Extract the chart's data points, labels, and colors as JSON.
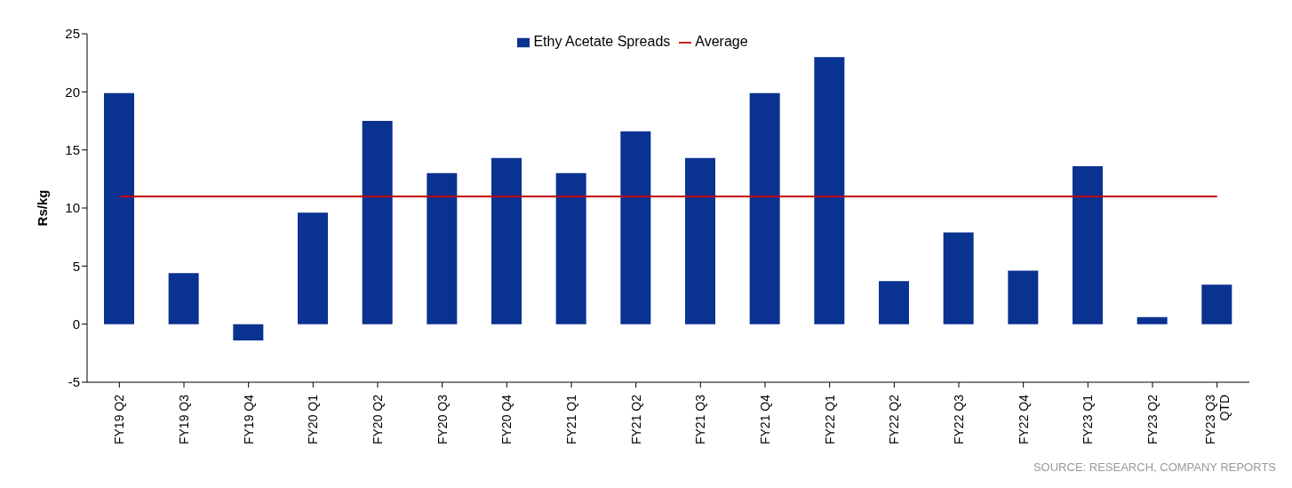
{
  "chart_data": {
    "type": "bar",
    "ylabel": "Rs/kg",
    "categories": [
      "FY19 Q2",
      "FY19 Q3",
      "FY19 Q4",
      "FY20 Q1",
      "FY20 Q2",
      "FY20 Q3",
      "FY20 Q4",
      "FY21 Q1",
      "FY21 Q2",
      "FY21 Q3",
      "FY21 Q4",
      "FY22 Q1",
      "FY22 Q2",
      "FY22 Q3",
      "FY22 Q4",
      "FY23 Q1",
      "FY23 Q2",
      "FY23 Q3 QTD"
    ],
    "series": [
      {
        "name": "Ethy Acetate Spreads",
        "color": "#0a3291",
        "values": [
          19.9,
          4.4,
          -1.4,
          9.6,
          17.5,
          13.0,
          14.3,
          13.0,
          16.6,
          14.3,
          19.9,
          23.0,
          3.7,
          7.9,
          4.6,
          13.6,
          0.6,
          3.4
        ]
      },
      {
        "name": "Average",
        "type": "line",
        "color": "#c00000",
        "values": [
          11,
          11,
          11,
          11,
          11,
          11,
          11,
          11,
          11,
          11,
          11,
          11,
          11,
          11,
          11,
          11,
          11,
          11
        ]
      }
    ],
    "ylim": [
      -5,
      25
    ],
    "yticks": [
      -5,
      0,
      5,
      10,
      15,
      20,
      25
    ],
    "grid": false,
    "legend": "top",
    "marker": "none",
    "line_style": "solid",
    "annotations": [
      "SOURCE: RESEARCH, COMPANY REPORTS"
    ]
  }
}
